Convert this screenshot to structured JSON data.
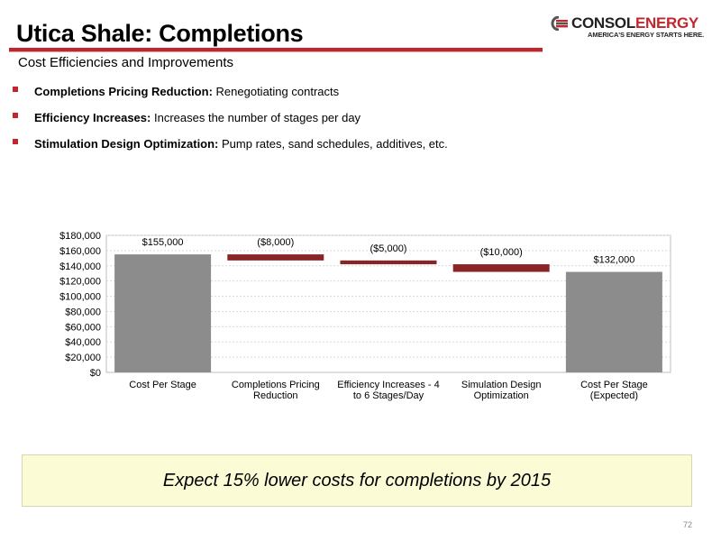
{
  "slide": {
    "title": "Utica Shale: Completions",
    "subtitle": "Cost Efficiencies and Improvements",
    "page_number": "72",
    "accent_color": "#c0272d"
  },
  "logo": {
    "brand_1": "CONSOL",
    "brand_2": "ENERGY",
    "tagline": "AMERICA'S ENERGY STARTS HERE."
  },
  "bullets": [
    {
      "bold": "Completions Pricing Reduction:",
      "text": "Renegotiating contracts"
    },
    {
      "bold": "Efficiency Increases:",
      "text": "Increases the number of stages per day"
    },
    {
      "bold": "Stimulation Design Optimization:",
      "text": "Pump rates, sand schedules, additives, etc."
    }
  ],
  "chart_data": {
    "type": "bar",
    "subtype": "waterfall",
    "categories": [
      "Cost Per Stage",
      "Completions Pricing Reduction",
      "Efficiency Increases - 4 to 6 Stages/Day",
      "Stimulation Design Optimization",
      "Cost Per Stage (Expected)"
    ],
    "category_lines": [
      [
        "Cost Per Stage"
      ],
      [
        "Completions Pricing",
        "Reduction"
      ],
      [
        "Efficiency Increases - 4",
        "to 6 Stages/Day"
      ],
      [
        "Simulation Design",
        "Optimization"
      ],
      [
        "Cost Per Stage",
        "(Expected)"
      ]
    ],
    "values": [
      155000,
      -8000,
      -5000,
      -10000,
      132000
    ],
    "data_labels": [
      "$155,000",
      "($8,000)",
      "($5,000)",
      "($10,000)",
      "$132,000"
    ],
    "bar_kinds": [
      "total",
      "delta",
      "delta",
      "delta",
      "total"
    ],
    "ylim": [
      0,
      180000
    ],
    "yticks": [
      0,
      20000,
      40000,
      60000,
      80000,
      100000,
      120000,
      140000,
      160000,
      180000
    ],
    "ytick_labels": [
      "$0",
      "$20,000",
      "$40,000",
      "$60,000",
      "$80,000",
      "$100,000",
      "$120,000",
      "$140,000",
      "$160,000",
      "$180,000"
    ],
    "grid": true,
    "colors": {
      "total": "#8c8c8c",
      "delta": "#8b2426",
      "grid": "#d9d9d9",
      "axis": "#bfbfbf"
    }
  },
  "callout": {
    "text": "Expect 15% lower costs for completions by 2015",
    "background": "#fbfbd6"
  }
}
